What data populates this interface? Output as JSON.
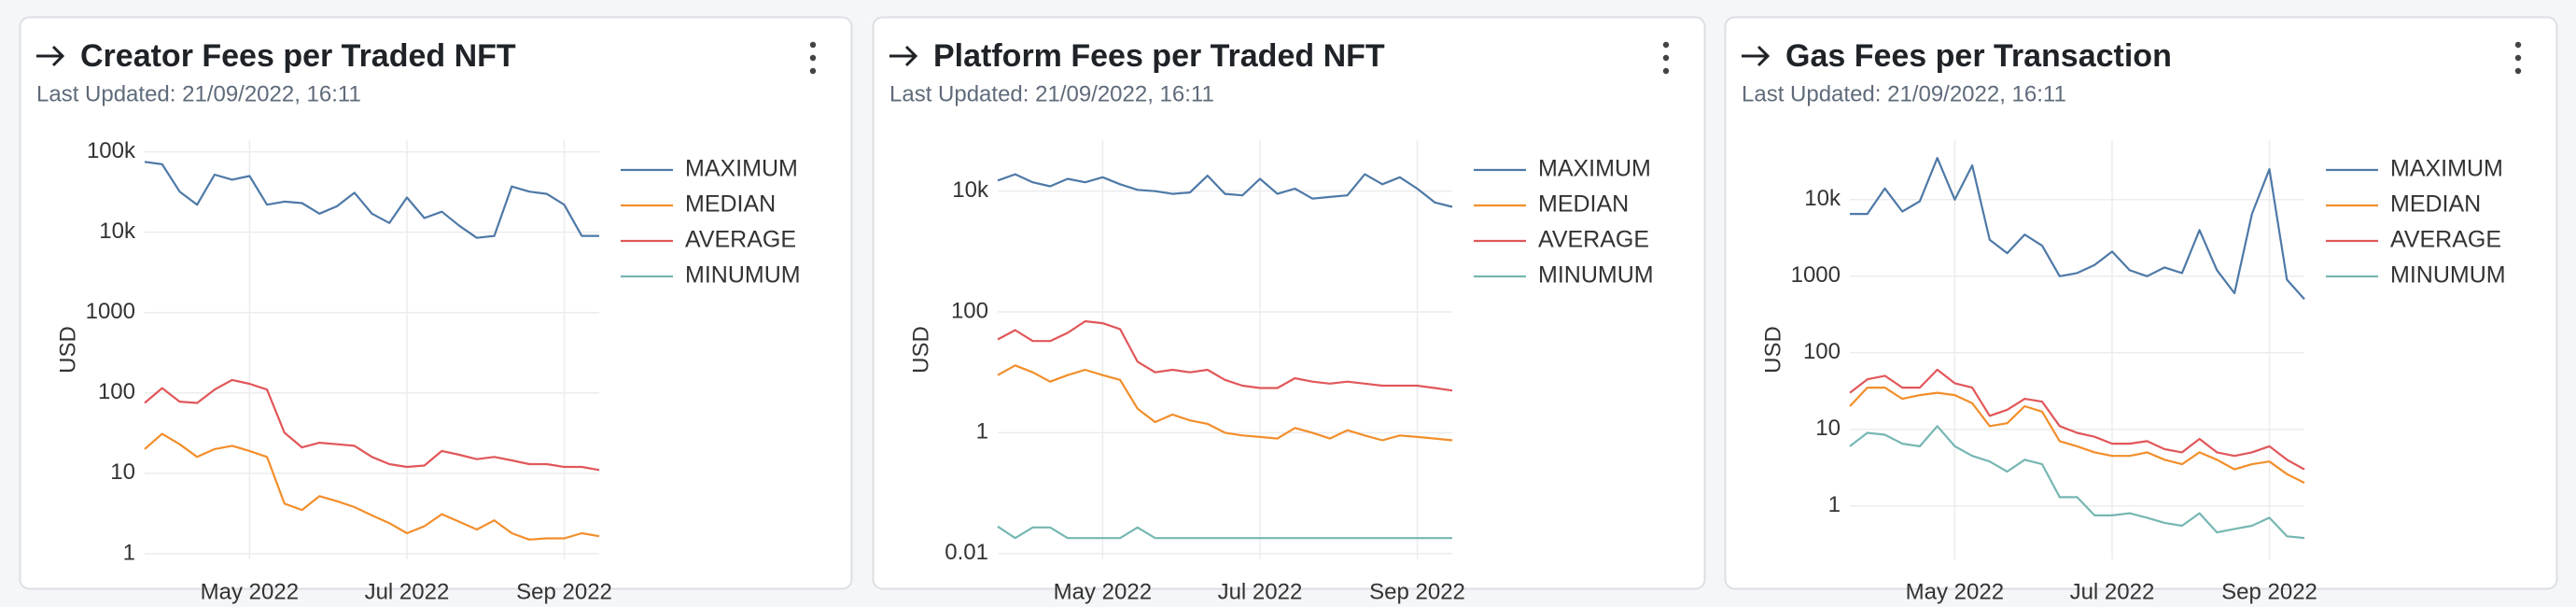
{
  "chart_data": [
    {
      "type": "line",
      "title": "Creator Fees per Traded NFT",
      "subtitle": "Last Updated: 21/09/2022, 16:11",
      "y_label": "USD",
      "log_scale": true,
      "grid": true,
      "legend": "right",
      "categories": [
        null,
        null,
        null,
        null,
        null,
        null,
        "May 2022",
        null,
        null,
        null,
        null,
        null,
        null,
        null,
        null,
        "Jul 2022",
        null,
        null,
        null,
        null,
        null,
        null,
        null,
        null,
        "Sep 2022",
        null,
        null
      ],
      "ylim": [
        0.85,
        140000
      ],
      "yticks": [
        1,
        10,
        100,
        1000,
        {
          "value": 10000,
          "label": "10k"
        },
        {
          "value": 100000,
          "label": "100k"
        }
      ],
      "series": [
        {
          "name": "MAXIMUM",
          "color": "#4e79a7",
          "values": [
            75000,
            70000,
            32000,
            22000,
            52000,
            45000,
            50000,
            22000,
            24000,
            23000,
            17000,
            21000,
            31000,
            17000,
            13000,
            27000,
            15000,
            18000,
            12000,
            8500,
            9000,
            37000,
            32000,
            30000,
            22000,
            9000,
            9000
          ]
        },
        {
          "name": "MEDIAN",
          "color": "#f28e2b",
          "values": [
            20,
            31,
            23,
            16,
            20,
            22,
            19,
            16,
            4.2,
            3.5,
            5.2,
            4.5,
            3.8,
            3,
            2.4,
            1.8,
            2.2,
            3.1,
            2.5,
            2,
            2.6,
            1.8,
            1.5,
            1.55,
            1.55,
            1.8,
            1.65
          ]
        },
        {
          "name": "AVERAGE",
          "color": "#e15759",
          "values": [
            75,
            115,
            78,
            75,
            110,
            145,
            130,
            110,
            32,
            21,
            24,
            23,
            22,
            16,
            13,
            12,
            12.5,
            19,
            17,
            15,
            16,
            14.5,
            13,
            13,
            12,
            12,
            11
          ]
        },
        {
          "name": "MINUMUM",
          "color": "#76b7b2",
          "values": [
            null,
            null,
            null,
            null,
            null,
            null,
            null,
            null,
            null,
            null,
            null,
            null,
            null,
            null,
            null,
            null,
            null,
            null,
            null,
            null,
            null,
            null,
            null,
            null,
            null,
            null,
            null
          ]
        }
      ]
    },
    {
      "type": "line",
      "title": "Platform Fees per Traded NFT",
      "subtitle": "Last Updated: 21/09/2022, 16:11",
      "y_label": "USD",
      "log_scale": true,
      "grid": true,
      "legend": "right",
      "categories": [
        null,
        null,
        null,
        null,
        null,
        null,
        "May 2022",
        null,
        null,
        null,
        null,
        null,
        null,
        null,
        null,
        "Jul 2022",
        null,
        null,
        null,
        null,
        null,
        null,
        null,
        null,
        "Sep 2022",
        null,
        null
      ],
      "ylim": [
        0.008,
        70000
      ],
      "yticks": [
        0.01,
        1,
        100,
        {
          "value": 10000,
          "label": "10k"
        }
      ],
      "series": [
        {
          "name": "MAXIMUM",
          "color": "#4e79a7",
          "values": [
            15000,
            19000,
            14000,
            12000,
            16000,
            14000,
            17000,
            13000,
            10500,
            10000,
            9000,
            9500,
            18000,
            9000,
            8500,
            16000,
            9000,
            11000,
            7500,
            8000,
            8500,
            19000,
            13000,
            17000,
            11000,
            6500,
            5500
          ]
        },
        {
          "name": "MEDIAN",
          "color": "#f28e2b",
          "values": [
            9,
            13,
            10,
            7,
            9,
            11,
            9,
            7.5,
            2.5,
            1.5,
            2,
            1.6,
            1.4,
            1,
            0.9,
            0.85,
            0.8,
            1.2,
            1,
            0.8,
            1.1,
            0.9,
            0.75,
            0.9,
            0.85,
            0.8,
            0.75
          ]
        },
        {
          "name": "AVERAGE",
          "color": "#e15759",
          "values": [
            35,
            50,
            33,
            33,
            45,
            70,
            65,
            52,
            15,
            10,
            11,
            10,
            11,
            7.5,
            6,
            5.5,
            5.5,
            8,
            7,
            6.5,
            7,
            6.5,
            6,
            6,
            6,
            5.5,
            5
          ]
        },
        {
          "name": "MINUMUM",
          "color": "#76b7b2",
          "values": [
            0.028,
            0.018,
            0.027,
            0.027,
            0.018,
            0.018,
            0.018,
            0.018,
            0.027,
            0.018,
            0.018,
            0.018,
            0.018,
            0.018,
            0.018,
            0.018,
            0.018,
            0.018,
            0.018,
            0.018,
            0.018,
            0.018,
            0.018,
            0.018,
            0.018,
            0.018,
            0.018
          ]
        }
      ]
    },
    {
      "type": "line",
      "title": "Gas Fees per Transaction",
      "subtitle": "Last Updated: 21/09/2022, 16:11",
      "y_label": "USD",
      "log_scale": true,
      "grid": true,
      "legend": "right",
      "categories": [
        null,
        null,
        null,
        null,
        null,
        null,
        "May 2022",
        null,
        null,
        null,
        null,
        null,
        null,
        null,
        null,
        "Jul 2022",
        null,
        null,
        null,
        null,
        null,
        null,
        null,
        null,
        "Sep 2022",
        null,
        null
      ],
      "ylim": [
        0.2,
        60000
      ],
      "yticks": [
        1,
        10,
        100,
        1000,
        {
          "value": 10000,
          "label": "10k"
        }
      ],
      "series": [
        {
          "name": "MAXIMUM",
          "color": "#4e79a7",
          "values": [
            6500,
            6500,
            14000,
            7000,
            9500,
            35000,
            10000,
            28000,
            3000,
            2000,
            3500,
            2500,
            1000,
            1100,
            1400,
            2100,
            1200,
            1000,
            1300,
            1100,
            4000,
            1200,
            600,
            6500,
            25000,
            900,
            500
          ]
        },
        {
          "name": "MEDIAN",
          "color": "#f28e2b",
          "values": [
            20,
            35,
            35,
            25,
            28,
            30,
            28,
            22,
            11,
            12,
            20,
            17,
            7,
            6,
            5,
            4.5,
            4.5,
            5,
            4,
            3.5,
            5,
            4,
            3,
            3.5,
            3.8,
            2.6,
            2
          ]
        },
        {
          "name": "AVERAGE",
          "color": "#e15759",
          "values": [
            30,
            45,
            50,
            35,
            35,
            60,
            40,
            35,
            15,
            18,
            25,
            23,
            11,
            9,
            8,
            6.5,
            6.5,
            7,
            5.5,
            5,
            7.5,
            5,
            4.5,
            5,
            6,
            4,
            3
          ]
        },
        {
          "name": "MINUMUM",
          "color": "#76b7b2",
          "values": [
            6,
            9,
            8.5,
            6.5,
            6,
            11,
            6,
            4.5,
            3.8,
            2.8,
            4,
            3.5,
            1.3,
            1.3,
            0.75,
            0.75,
            0.8,
            0.7,
            0.6,
            0.55,
            0.8,
            0.45,
            0.5,
            0.55,
            0.7,
            0.4,
            0.38
          ]
        }
      ]
    }
  ]
}
